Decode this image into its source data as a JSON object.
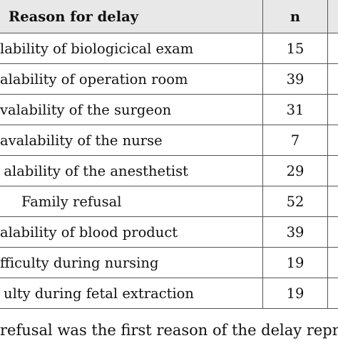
{
  "table": {
    "headers": {
      "reason": "Reason for delay",
      "n": "n"
    },
    "rows": [
      {
        "reason": "lability of biologicical exam",
        "n": "15"
      },
      {
        "reason": "alability of operation room",
        "n": "39"
      },
      {
        "reason": "valability of the surgeon",
        "n": "31"
      },
      {
        "reason": "avalability of the nurse",
        "n": "7"
      },
      {
        "reason": "alability of the anesthetist",
        "n": "29"
      },
      {
        "reason": "Family refusal",
        "n": "52"
      },
      {
        "reason": "alability of blood product",
        "n": "39"
      },
      {
        "reason": "fficulty during nursing",
        "n": "19"
      },
      {
        "reason": "ulty during fetal extraction",
        "n": "19"
      }
    ]
  },
  "footnote": "refusal was the first reason of the delay repr"
}
